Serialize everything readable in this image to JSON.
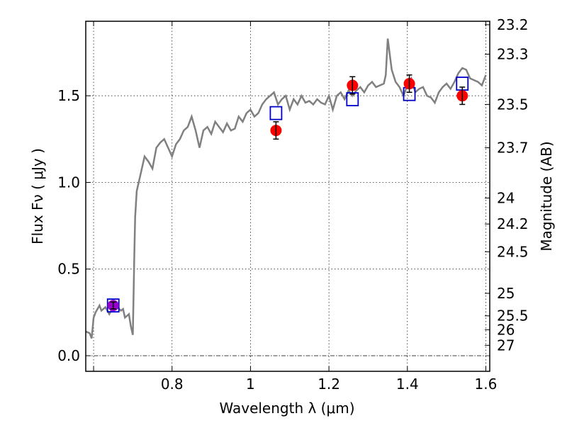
{
  "chart_data": {
    "type": "scatter",
    "xlabel": "Wavelength  λ (μm)",
    "ylabel": "Flux  Fν  ( μJy )",
    "y2label": "Magnitude (AB)",
    "xlim": [
      0.58,
      1.61
    ],
    "ylim": [
      -0.09,
      1.93
    ],
    "grid": true,
    "x_ticks": [
      {
        "value": 0.6,
        "label": ""
      },
      {
        "value": 0.8,
        "label": "0.8"
      },
      {
        "value": 1.0,
        "label": "1"
      },
      {
        "value": 1.2,
        "label": "1.2"
      },
      {
        "value": 1.4,
        "label": "1.4"
      },
      {
        "value": 1.6,
        "label": "1.6"
      }
    ],
    "y_ticks": [
      {
        "value": 0.0,
        "label": "0.0"
      },
      {
        "value": 0.5,
        "label": "0.5"
      },
      {
        "value": 1.0,
        "label": "1.0"
      },
      {
        "value": 1.5,
        "label": "1.5"
      }
    ],
    "y2_ticks": [
      {
        "flux": 1.91,
        "label": "23.2"
      },
      {
        "flux": 1.74,
        "label": "23.3"
      },
      {
        "flux": 1.45,
        "label": "23.5"
      },
      {
        "flux": 1.2,
        "label": "23.7"
      },
      {
        "flux": 0.91,
        "label": "24"
      },
      {
        "flux": 0.76,
        "label": "24.2"
      },
      {
        "flux": 0.6,
        "label": "24.5"
      },
      {
        "flux": 0.36,
        "label": "25"
      },
      {
        "flux": 0.23,
        "label": "25.5"
      },
      {
        "flux": 0.15,
        "label": "26"
      },
      {
        "flux": 0.06,
        "label": "27"
      }
    ],
    "colors": {
      "model": "#808080",
      "observed": "#ff0000",
      "optical_point": "#9900cc",
      "model_photometry": "#0000cc",
      "zero_line": "#000000"
    },
    "model_spectrum": {
      "x": [
        0.58,
        0.59,
        0.595,
        0.6,
        0.605,
        0.61,
        0.615,
        0.62,
        0.63,
        0.64,
        0.65,
        0.66,
        0.67,
        0.675,
        0.68,
        0.69,
        0.695,
        0.7,
        0.704,
        0.706,
        0.71,
        0.72,
        0.73,
        0.74,
        0.75,
        0.76,
        0.77,
        0.78,
        0.79,
        0.8,
        0.81,
        0.82,
        0.83,
        0.84,
        0.85,
        0.86,
        0.87,
        0.88,
        0.89,
        0.9,
        0.91,
        0.92,
        0.93,
        0.94,
        0.95,
        0.96,
        0.97,
        0.98,
        0.99,
        1.0,
        1.01,
        1.02,
        1.03,
        1.04,
        1.05,
        1.06,
        1.07,
        1.08,
        1.09,
        1.1,
        1.11,
        1.12,
        1.13,
        1.14,
        1.15,
        1.16,
        1.17,
        1.18,
        1.19,
        1.2,
        1.21,
        1.22,
        1.23,
        1.24,
        1.25,
        1.26,
        1.27,
        1.28,
        1.29,
        1.3,
        1.31,
        1.32,
        1.33,
        1.34,
        1.345,
        1.35,
        1.36,
        1.37,
        1.38,
        1.39,
        1.4,
        1.41,
        1.42,
        1.43,
        1.44,
        1.45,
        1.46,
        1.47,
        1.48,
        1.49,
        1.5,
        1.51,
        1.52,
        1.53,
        1.54,
        1.55,
        1.56,
        1.57,
        1.58,
        1.59,
        1.6
      ],
      "y": [
        0.14,
        0.13,
        0.1,
        0.22,
        0.25,
        0.27,
        0.29,
        0.26,
        0.28,
        0.24,
        0.28,
        0.28,
        0.26,
        0.27,
        0.22,
        0.24,
        0.17,
        0.12,
        0.6,
        0.8,
        0.95,
        1.05,
        1.15,
        1.12,
        1.08,
        1.2,
        1.23,
        1.25,
        1.2,
        1.15,
        1.22,
        1.25,
        1.3,
        1.32,
        1.38,
        1.3,
        1.2,
        1.3,
        1.32,
        1.28,
        1.35,
        1.32,
        1.29,
        1.34,
        1.3,
        1.31,
        1.38,
        1.35,
        1.4,
        1.42,
        1.38,
        1.4,
        1.45,
        1.48,
        1.5,
        1.52,
        1.45,
        1.48,
        1.5,
        1.42,
        1.48,
        1.45,
        1.5,
        1.46,
        1.47,
        1.45,
        1.48,
        1.46,
        1.45,
        1.5,
        1.42,
        1.5,
        1.52,
        1.48,
        1.53,
        1.5,
        1.53,
        1.55,
        1.52,
        1.56,
        1.58,
        1.55,
        1.56,
        1.57,
        1.62,
        1.83,
        1.65,
        1.58,
        1.55,
        1.5,
        1.56,
        1.6,
        1.52,
        1.54,
        1.55,
        1.5,
        1.49,
        1.46,
        1.52,
        1.55,
        1.57,
        1.54,
        1.58,
        1.63,
        1.66,
        1.65,
        1.6,
        1.59,
        1.58,
        1.56,
        1.62
      ]
    },
    "observed": [
      {
        "x": 1.065,
        "y": 1.3,
        "err": 0.05
      },
      {
        "x": 1.26,
        "y": 1.56,
        "err": 0.05
      },
      {
        "x": 1.405,
        "y": 1.57,
        "err": 0.05
      },
      {
        "x": 1.54,
        "y": 1.5,
        "err": 0.05
      }
    ],
    "optical_point": {
      "x": 0.65,
      "y": 0.29,
      "err": 0.02
    },
    "model_photometry": [
      {
        "x": 0.65,
        "y": 0.29
      },
      {
        "x": 1.065,
        "y": 1.4
      },
      {
        "x": 1.26,
        "y": 1.48
      },
      {
        "x": 1.405,
        "y": 1.51
      },
      {
        "x": 1.54,
        "y": 1.57
      }
    ]
  }
}
